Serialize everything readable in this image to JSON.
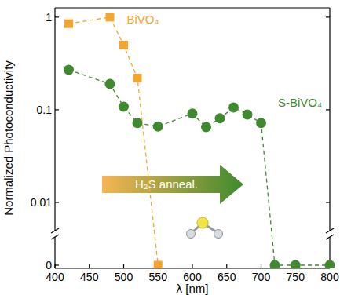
{
  "chart_data": {
    "type": "line",
    "x_label": "λ [nm]",
    "y_label": "Normalized Photoconductivity",
    "annotation": "H₂S anneal.",
    "log": "y",
    "grid": false,
    "xlim": [
      400,
      800
    ],
    "xticks": [
      400,
      450,
      500,
      550,
      600,
      650,
      700,
      750,
      800
    ],
    "ylim": [
      0,
      1.26
    ],
    "yticks": [
      0,
      0.01,
      0.1,
      1
    ],
    "series": [
      {
        "name": "BiVO₄",
        "color": "#f5a52e",
        "marker": "square",
        "line_style": "dashed",
        "x": [
          420,
          480,
          500,
          520,
          550
        ],
        "values": [
          0.85,
          1.0,
          0.5,
          0.22,
          0
        ]
      },
      {
        "name": "S-BiVO₄",
        "color": "#3f8a2f",
        "marker": "circle",
        "line_style": "dashed",
        "x": [
          420,
          480,
          500,
          520,
          550,
          600,
          620,
          640,
          660,
          680,
          700,
          720,
          750,
          800
        ],
        "values": [
          0.27,
          0.19,
          0.108,
          0.072,
          0.066,
          0.091,
          0.065,
          0.081,
          0.106,
          0.089,
          0.072,
          0,
          0,
          0
        ]
      }
    ]
  }
}
